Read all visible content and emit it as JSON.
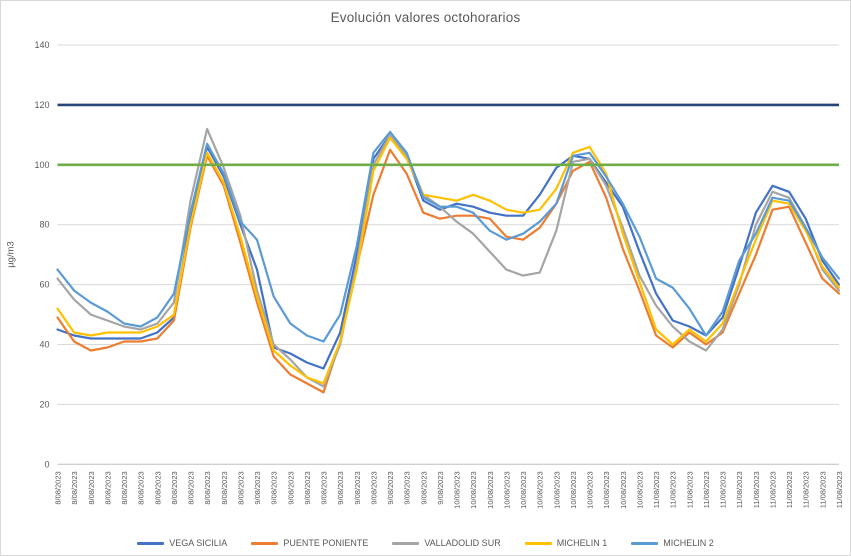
{
  "chart_data": {
    "type": "line",
    "title": "Evolución valores octohorarios",
    "ylabel": "µg/m3",
    "xlabel": "",
    "ylim": [
      0,
      140
    ],
    "y_ticks": [
      0,
      20,
      40,
      60,
      80,
      100,
      120,
      140
    ],
    "grid": "horizontal",
    "legend_position": "bottom",
    "categories": [
      "8/08/2023",
      "8/08/2023",
      "8/08/2023",
      "8/08/2023",
      "8/08/2023",
      "8/08/2023",
      "8/08/2023",
      "8/08/2023",
      "8/08/2023",
      "8/08/2023",
      "8/08/2023",
      "8/08/2023",
      "9/08/2023",
      "9/08/2023",
      "9/08/2023",
      "9/08/2023",
      "9/08/2023",
      "9/08/2023",
      "9/08/2023",
      "9/08/2023",
      "9/08/2023",
      "9/08/2023",
      "9/08/2023",
      "9/08/2023",
      "10/08/2023",
      "10/08/2023",
      "10/08/2023",
      "10/08/2023",
      "10/08/2023",
      "10/08/2023",
      "10/08/2023",
      "10/08/2023",
      "10/08/2023",
      "10/08/2023",
      "10/08/2023",
      "10/08/2023",
      "11/08/2023",
      "11/08/2023",
      "11/08/2023",
      "11/08/2023",
      "11/08/2023",
      "11/08/2023",
      "11/08/2023",
      "11/08/2023",
      "11/08/2023",
      "11/08/2023",
      "11/08/2023",
      "11/08/2023"
    ],
    "series": [
      {
        "name": "VEGA SICILIA",
        "color": "#4472C4",
        "values": [
          45,
          43,
          42,
          42,
          42,
          42,
          44,
          49,
          82,
          106,
          96,
          80,
          65,
          39,
          37,
          34,
          32,
          44,
          70,
          102,
          110,
          103,
          88,
          85,
          87,
          86,
          84,
          83,
          83,
          90,
          99,
          103,
          102,
          94,
          86,
          71,
          57,
          48,
          46,
          43,
          49,
          66,
          84,
          93,
          91,
          82,
          68,
          60
        ]
      },
      {
        "name": "PUENTE PONIENTE",
        "color": "#ED7D31",
        "values": [
          49,
          41,
          38,
          39,
          41,
          41,
          42,
          48,
          79,
          103,
          93,
          74,
          54,
          36,
          30,
          27,
          24,
          41,
          66,
          90,
          105,
          97,
          84,
          82,
          83,
          83,
          82,
          76,
          75,
          79,
          87,
          98,
          101,
          89,
          72,
          58,
          43,
          39,
          44,
          40,
          44,
          57,
          70,
          85,
          86,
          74,
          62,
          57
        ]
      },
      {
        "name": "VALLADOLID SUR",
        "color": "#A5A5A5",
        "values": [
          62,
          55,
          50,
          48,
          46,
          45,
          47,
          54,
          88,
          112,
          99,
          83,
          58,
          40,
          35,
          29,
          26,
          40,
          67,
          100,
          110,
          103,
          90,
          86,
          81,
          77,
          71,
          65,
          63,
          64,
          78,
          101,
          102,
          93,
          79,
          63,
          53,
          46,
          41,
          38,
          45,
          60,
          80,
          91,
          89,
          79,
          65,
          58
        ]
      },
      {
        "name": "MICHELIN 1",
        "color": "#FFC000",
        "values": [
          52,
          44,
          43,
          44,
          44,
          44,
          46,
          50,
          80,
          104,
          94,
          76,
          56,
          38,
          33,
          29,
          27,
          41,
          65,
          98,
          109,
          102,
          90,
          89,
          88,
          90,
          88,
          85,
          84,
          85,
          92,
          104,
          106,
          97,
          77,
          61,
          45,
          40,
          45,
          41,
          47,
          61,
          75,
          88,
          87,
          78,
          66,
          59
        ]
      },
      {
        "name": "MICHELIN 2",
        "color": "#5B9BD5",
        "values": [
          65,
          58,
          54,
          51,
          47,
          46,
          49,
          57,
          84,
          107,
          97,
          81,
          75,
          56,
          47,
          43,
          41,
          50,
          73,
          104,
          111,
          104,
          89,
          86,
          86,
          84,
          78,
          75,
          77,
          81,
          87,
          103,
          104,
          96,
          87,
          76,
          62,
          59,
          52,
          43,
          51,
          68,
          77,
          89,
          88,
          79,
          69,
          62
        ]
      }
    ],
    "reference_lines": [
      {
        "value": 120,
        "color": "#264478"
      },
      {
        "value": 100,
        "color": "#70AD47"
      }
    ]
  },
  "colors": {
    "gridline": "#D9D9D9",
    "axis_line": "#BFBFBF",
    "tick_text": "#595959",
    "title_text": "#595959"
  }
}
